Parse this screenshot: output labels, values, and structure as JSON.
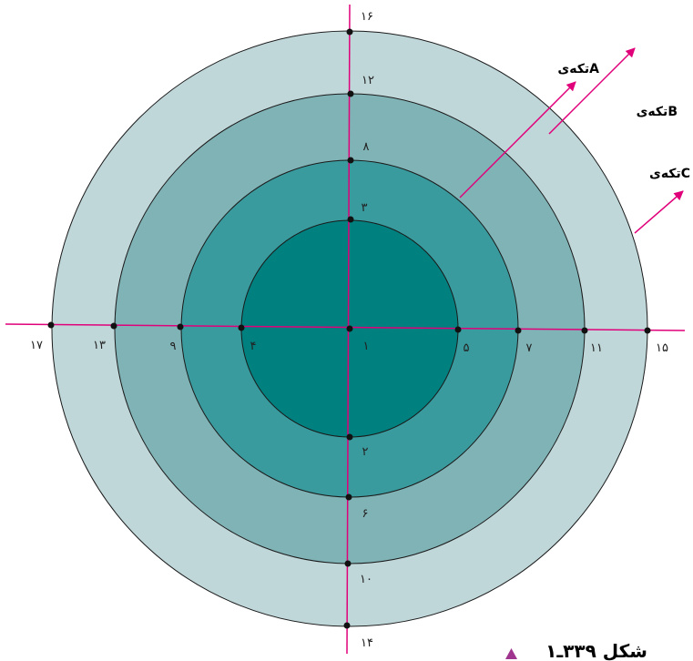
{
  "colors": {
    "ring_outer": "#c0d7da",
    "ring_2": "#80b3b6",
    "ring_3": "#3a9b9e",
    "ring_inner": "#00807f",
    "line_magenta": "#e0007a",
    "outline": "#1a1a1a",
    "caption_marker": "#a0358f"
  },
  "labels": {
    "n1": "١",
    "n2": "٢",
    "n3": "٣",
    "n4": "۴",
    "n5": "۵",
    "n6": "۶",
    "n7": "٧",
    "n8": "٨",
    "n9": "٩",
    "n10": "١٠",
    "n11": "١١",
    "n12": "١٢",
    "n13": "١٣",
    "n14": "١۴",
    "n15": "١۵",
    "n16": "١۶",
    "n17": "١٧"
  },
  "pieces": {
    "a": "تکه‌یA",
    "b": "تکه‌یB",
    "c": "تکه‌یC"
  },
  "caption": "شکل ٣٣٩ـ١"
}
